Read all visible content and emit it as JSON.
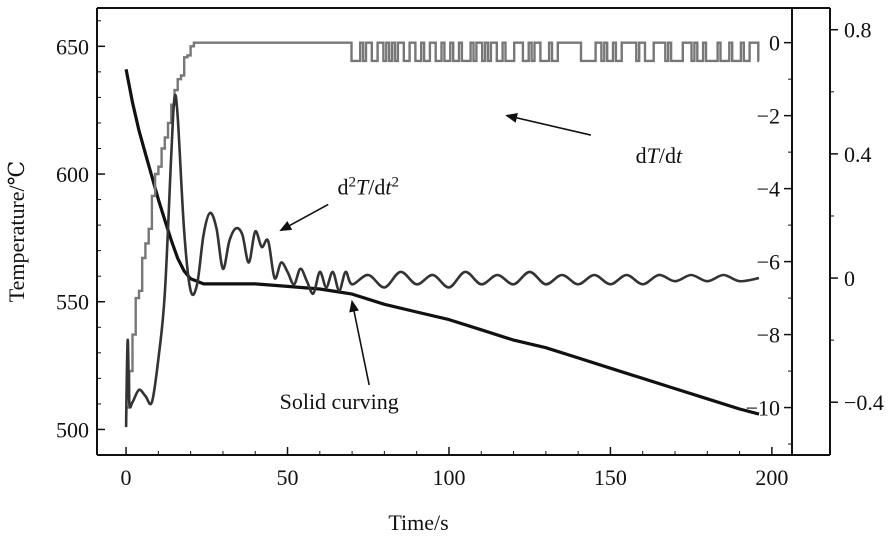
{
  "chart_data": {
    "type": "line",
    "xlabel": "Time/s",
    "ylabel": "Temperature/℃",
    "xlim": [
      -9,
      218
    ],
    "ylim": [
      490,
      665
    ],
    "x_ticks": [
      "0",
      "50",
      "100",
      "150",
      "200"
    ],
    "y_ticks": [
      "500",
      "550",
      "600",
      "650"
    ],
    "right_axis_inner": {
      "ylim": [
        -11.3,
        0.95
      ],
      "ticks": [
        "0",
        "−2",
        "−4",
        "−6",
        "−8",
        "−10"
      ]
    },
    "right_axis_outer": {
      "ylim": [
        -0.57,
        0.87
      ],
      "ticks": [
        "0.8",
        "0.4",
        "0",
        "−0.4"
      ]
    },
    "grid": false,
    "series": [
      {
        "axis": "left",
        "color": "#111111",
        "x": [
          0,
          2,
          4,
          6,
          8,
          10,
          12,
          14,
          16,
          18,
          20,
          22,
          24,
          26,
          30,
          40,
          50,
          60,
          65,
          70,
          75,
          80,
          90,
          100,
          110,
          120,
          130,
          140,
          150,
          160,
          170,
          180,
          190,
          196
        ],
        "y": [
          641,
          628,
          617,
          608,
          599,
          590,
          582,
          574,
          567,
          562,
          559,
          558,
          557,
          557,
          557,
          557,
          556,
          555,
          554,
          553,
          551,
          549,
          546,
          543,
          539,
          535,
          532,
          528,
          524,
          520,
          516,
          512,
          508,
          506
        ]
      },
      {
        "axis": "right_inner",
        "color": "#777777",
        "x": [
          0,
          1,
          2,
          3,
          4,
          5,
          6,
          7,
          8,
          9,
          10,
          11,
          12,
          13,
          14,
          15,
          16,
          17,
          18,
          19,
          20,
          21,
          22,
          23,
          70,
          196
        ],
        "y": [
          -10,
          -9,
          -8,
          -7,
          -6.8,
          -5.9,
          -5.5,
          -5.1,
          -4.2,
          -3.6,
          -3.4,
          -2.9,
          -2.6,
          -2.2,
          -1.7,
          -1.3,
          -1.0,
          -0.9,
          -0.4,
          -0.35,
          -0.1,
          0.0,
          0.0,
          0.0,
          0.0,
          0.0
        ],
        "noise": {
          "from_x": 68,
          "to_x": 196,
          "min": -0.5,
          "max": 0.0
        }
      },
      {
        "axis": "right_outer",
        "color": "#333333",
        "x": [
          0,
          0.5,
          1,
          2,
          4,
          6,
          8,
          10,
          12,
          14,
          15,
          16,
          18,
          20,
          22,
          24,
          26,
          28,
          30,
          32,
          34,
          36,
          38,
          40,
          42,
          44,
          46,
          48,
          50,
          52,
          54,
          56,
          58,
          60,
          62,
          64,
          66,
          68,
          70,
          75,
          80,
          85,
          90,
          95,
          100,
          105,
          110,
          115,
          120,
          125,
          130,
          135,
          140,
          145,
          150,
          155,
          160,
          165,
          170,
          175,
          180,
          185,
          190,
          196
        ],
        "y": [
          -0.48,
          -0.2,
          -0.4,
          -0.4,
          -0.36,
          -0.38,
          -0.4,
          -0.26,
          -0.05,
          0.4,
          0.58,
          0.52,
          0.15,
          -0.04,
          -0.02,
          0.14,
          0.21,
          0.16,
          0.03,
          0.12,
          0.16,
          0.14,
          0.05,
          0.15,
          0.1,
          0.12,
          0.0,
          0.05,
          0.02,
          -0.02,
          0.03,
          -0.01,
          -0.05,
          0.02,
          -0.03,
          0.02,
          -0.04,
          0.02,
          -0.02,
          0.01,
          -0.03,
          0.02,
          -0.02,
          0.01,
          -0.03,
          0.02,
          -0.02,
          0.01,
          -0.02,
          0.02,
          -0.02,
          0.01,
          -0.02,
          0.01,
          -0.02,
          0.01,
          -0.02,
          0.01,
          -0.01,
          0.01,
          -0.01,
          0.01,
          -0.01,
          0.0
        ]
      }
    ],
    "annotations": [
      {
        "text_parts": [
          "d",
          "T",
          "/d",
          "t"
        ],
        "italic": [
          false,
          true,
          false,
          true
        ],
        "x": 165,
        "y_right_inner": -3.3,
        "arrow_to": {
          "x": 118,
          "y_right_inner": -2.0
        }
      },
      {
        "text_parts": [
          "d",
          "2",
          "T",
          "/d",
          "t",
          "2"
        ],
        "italic": [
          false,
          false,
          true,
          false,
          true,
          false
        ],
        "sup": [
          false,
          true,
          false,
          false,
          false,
          true
        ],
        "x": 75,
        "y": 592,
        "arrow_to": {
          "x": 48,
          "y": 578
        }
      },
      {
        "text_parts": [
          "Solid curving"
        ],
        "italic": [
          false
        ],
        "x": 66,
        "y": 508,
        "arrow_to": {
          "x": 70,
          "y": 550
        }
      }
    ]
  }
}
